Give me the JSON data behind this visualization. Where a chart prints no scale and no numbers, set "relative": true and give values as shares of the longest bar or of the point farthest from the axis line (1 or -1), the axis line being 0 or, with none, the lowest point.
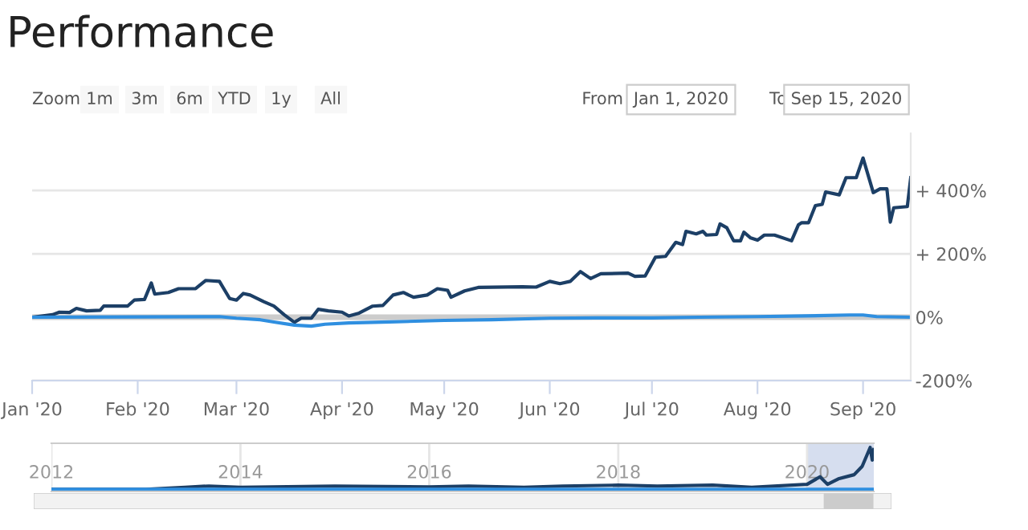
{
  "chart_data": [
    {
      "type": "line",
      "title": "Performance",
      "annotations": [
        "Zoom",
        "1m",
        "3m",
        "6m",
        "YTD",
        "1y",
        "All",
        "From",
        "Jan 1, 2020",
        "To",
        "Sep 15, 2020"
      ],
      "xlim": [
        "2020-01-01",
        "2020-09-15"
      ],
      "xticks": [
        {
          "value": "2020-01-01",
          "label": "Jan '20"
        },
        {
          "value": "2020-02-01",
          "label": "Feb '20"
        },
        {
          "value": "2020-03-01",
          "label": "Mar '20"
        },
        {
          "value": "2020-04-01",
          "label": "Apr '20"
        },
        {
          "value": "2020-05-01",
          "label": "May '20"
        },
        {
          "value": "2020-06-01",
          "label": "Jun '20"
        },
        {
          "value": "2020-07-01",
          "label": "Jul '20"
        },
        {
          "value": "2020-08-01",
          "label": "Aug '20"
        },
        {
          "value": "2020-09-01",
          "label": "Sep '20"
        }
      ],
      "ylim": [
        -200,
        580
      ],
      "yticks": [
        {
          "value": -200,
          "label": "-200%"
        },
        {
          "value": 0,
          "label": "0%"
        },
        {
          "value": 200,
          "label": "+ 200%"
        },
        {
          "value": 400,
          "label": "+ 400%"
        }
      ],
      "grid": "y",
      "ref_lines": [
        {
          "axis": "y",
          "value": 0,
          "color": "#cccccc"
        }
      ],
      "series": [
        {
          "color": "#1c3f66",
          "x": [
            "2020-01-01",
            "2020-01-07",
            "2020-01-09",
            "2020-01-12",
            "2020-01-14",
            "2020-01-17",
            "2020-01-21",
            "2020-01-22",
            "2020-01-29",
            "2020-01-31",
            "2020-02-03",
            "2020-02-05",
            "2020-02-06",
            "2020-02-10",
            "2020-02-13",
            "2020-02-18",
            "2020-02-21",
            "2020-02-25",
            "2020-02-28",
            "2020-03-01",
            "2020-03-03",
            "2020-03-05",
            "2020-03-09",
            "2020-03-12",
            "2020-03-15",
            "2020-03-18",
            "2020-03-20",
            "2020-03-23",
            "2020-03-25",
            "2020-03-28",
            "2020-04-01",
            "2020-04-03",
            "2020-04-06",
            "2020-04-10",
            "2020-04-13",
            "2020-04-16",
            "2020-04-19",
            "2020-04-22",
            "2020-04-26",
            "2020-04-29",
            "2020-05-02",
            "2020-05-03",
            "2020-05-07",
            "2020-05-11",
            "2020-05-24",
            "2020-05-28",
            "2020-06-01",
            "2020-06-04",
            "2020-06-07",
            "2020-06-10",
            "2020-06-13",
            "2020-06-16",
            "2020-06-24",
            "2020-06-26",
            "2020-06-29",
            "2020-07-02",
            "2020-07-05",
            "2020-07-08",
            "2020-07-10",
            "2020-07-11",
            "2020-07-14",
            "2020-07-16",
            "2020-07-17",
            "2020-07-20",
            "2020-07-21",
            "2020-07-23",
            "2020-07-25",
            "2020-07-27",
            "2020-07-28",
            "2020-07-30",
            "2020-08-01",
            "2020-08-03",
            "2020-08-06",
            "2020-08-11",
            "2020-08-13",
            "2020-08-14",
            "2020-08-16",
            "2020-08-18",
            "2020-08-20",
            "2020-08-21",
            "2020-08-25",
            "2020-08-27",
            "2020-08-30",
            "2020-09-01",
            "2020-09-04",
            "2020-09-06",
            "2020-09-08",
            "2020-09-09",
            "2020-09-10",
            "2020-09-14",
            "2020-09-15"
          ],
          "values": [
            0,
            8,
            16,
            15,
            28,
            20,
            22,
            35,
            35,
            54,
            56,
            108,
            73,
            78,
            90,
            90,
            116,
            113,
            59,
            54,
            75,
            70,
            49,
            35,
            8,
            -16,
            -3,
            -3,
            25,
            20,
            16,
            4,
            13,
            35,
            37,
            70,
            78,
            63,
            70,
            90,
            85,
            63,
            83,
            94,
            96,
            95,
            113,
            106,
            113,
            144,
            122,
            137,
            139,
            129,
            130,
            189,
            192,
            236,
            229,
            271,
            263,
            271,
            259,
            261,
            294,
            282,
            241,
            241,
            268,
            250,
            243,
            259,
            259,
            241,
            291,
            298,
            298,
            352,
            356,
            395,
            386,
            440,
            440,
            502,
            393,
            405,
            405,
            300,
            345,
            349,
            440
          ]
        },
        {
          "color": "#2f8fe0",
          "x": [
            "2020-01-01",
            "2020-02-01",
            "2020-02-25",
            "2020-03-01",
            "2020-03-08",
            "2020-03-12",
            "2020-03-18",
            "2020-03-23",
            "2020-03-27",
            "2020-04-03",
            "2020-04-15",
            "2020-05-01",
            "2020-05-15",
            "2020-06-01",
            "2020-06-15",
            "2020-07-01",
            "2020-07-15",
            "2020-08-01",
            "2020-08-15",
            "2020-08-28",
            "2020-09-01",
            "2020-09-05",
            "2020-09-15"
          ],
          "values": [
            0,
            1,
            2,
            -3,
            -8,
            -15,
            -25,
            -28,
            -22,
            -18,
            -15,
            -10,
            -8,
            -3,
            -2,
            -2,
            0,
            2,
            4,
            7,
            7,
            2,
            0
          ]
        }
      ]
    },
    {
      "type": "line",
      "relative": true,
      "xlim": [
        "2012-01-01",
        "2020-09-15"
      ],
      "xticks": [
        {
          "value": "2012-01-01",
          "label": "2012"
        },
        {
          "value": "2014-01-01",
          "label": "2014"
        },
        {
          "value": "2016-01-01",
          "label": "2016"
        },
        {
          "value": "2018-01-01",
          "label": "2018"
        },
        {
          "value": "2020-01-01",
          "label": "2020"
        }
      ],
      "grid": "x",
      "bands": [
        {
          "axis": "x",
          "from": "2020-01-01",
          "to": "2020-09-15",
          "color": "#ccd6eb"
        }
      ],
      "series": [
        {
          "color": "#1c3f66",
          "x": [
            "2012-01-01",
            "2013-01-01",
            "2013-06-01",
            "2013-09-01",
            "2014-01-01",
            "2015-01-01",
            "2016-01-01",
            "2016-06-01",
            "2017-01-01",
            "2017-06-01",
            "2018-01-01",
            "2018-06-01",
            "2019-01-01",
            "2019-06-01",
            "2020-01-01",
            "2020-02-20",
            "2020-03-20",
            "2020-05-01",
            "2020-07-01",
            "2020-08-01",
            "2020-09-01",
            "2020-09-09",
            "2020-09-15"
          ],
          "values": [
            0,
            0,
            0.05,
            0.08,
            0.05,
            0.08,
            0.06,
            0.08,
            0.05,
            0.08,
            0.1,
            0.08,
            0.1,
            0.05,
            0.12,
            0.3,
            0.12,
            0.25,
            0.35,
            0.55,
            1.0,
            0.7,
            0.95
          ]
        },
        {
          "color": "#2f8fe0",
          "x": [
            "2012-01-01",
            "2020-09-15"
          ],
          "values": [
            0,
            0
          ]
        }
      ]
    }
  ]
}
